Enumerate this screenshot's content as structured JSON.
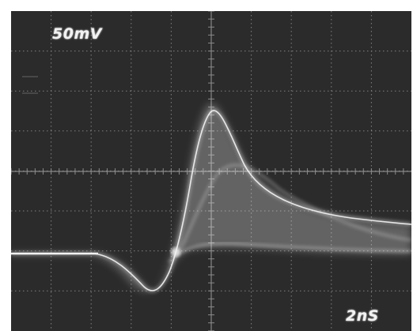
{
  "oscilloscope": {
    "volts_per_div": "50mV",
    "time_per_div": "2nS"
  },
  "colors": {
    "screen": "#2b2b2b",
    "grid": "#8a8a8a",
    "trace": "#f4f4f4",
    "frame": "#ffffff"
  }
}
